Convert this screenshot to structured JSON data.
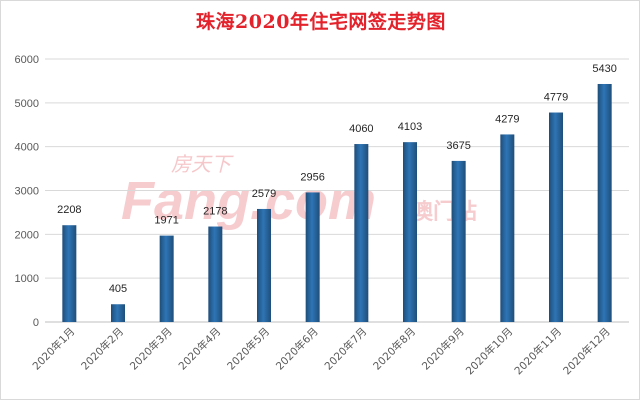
{
  "chart_data": {
    "type": "bar",
    "title": "珠海2020年住宅网签走势图",
    "categories": [
      "2020年1月",
      "2020年2月",
      "2020年3月",
      "2020年4月",
      "2020年5月",
      "2020年6月",
      "2020年7月",
      "2020年8月",
      "2020年9月",
      "2020年10月",
      "2020年11月",
      "2020年12月"
    ],
    "values": [
      2208,
      405,
      1971,
      2178,
      2579,
      2956,
      4060,
      4103,
      3675,
      4279,
      4779,
      5430
    ],
    "ylim": [
      0,
      6000
    ],
    "yticks": [
      0,
      1000,
      2000,
      3000,
      4000,
      5000,
      6000
    ],
    "grid": true,
    "xlabel": "",
    "ylabel": "",
    "bar_color": "#2e75b6",
    "bar_color_dark": "#1f4e79"
  },
  "watermark": {
    "brand_top": "房天下",
    "brand_main": "Fang.com",
    "brand_side": "澳门站",
    "color": "#e8a0a0"
  }
}
